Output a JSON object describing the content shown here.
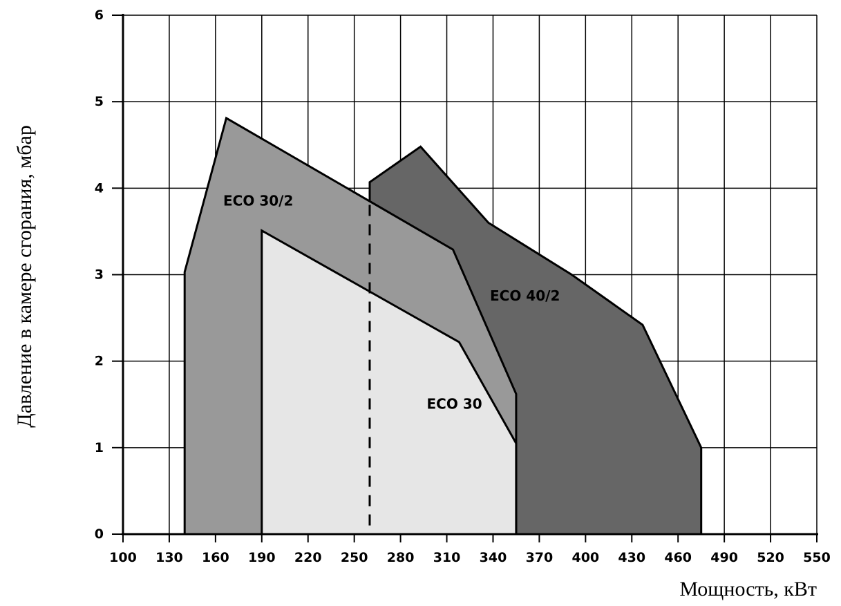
{
  "chart_data": {
    "type": "area",
    "xlabel": "Мощность, кВт",
    "ylabel": "Давление в камере сгорания, мбар",
    "xlim": [
      100,
      550
    ],
    "ylim": [
      0,
      6
    ],
    "x_ticks": [
      100,
      130,
      160,
      190,
      220,
      250,
      280,
      310,
      340,
      370,
      400,
      430,
      460,
      490,
      520,
      550
    ],
    "y_ticks": [
      0,
      1,
      2,
      3,
      4,
      5,
      6
    ],
    "grid": true,
    "series": [
      {
        "name": "ECO 40/2",
        "color": "#666666",
        "label_at": [
          338,
          2.7
        ],
        "points": [
          [
            260,
            0
          ],
          [
            260,
            4.07
          ],
          [
            293,
            4.48
          ],
          [
            337,
            3.6
          ],
          [
            391,
            3.0
          ],
          [
            437,
            2.42
          ],
          [
            475,
            1.0
          ],
          [
            475,
            0
          ]
        ]
      },
      {
        "name": "ECO 30/2",
        "color": "#999999",
        "label_at": [
          165,
          3.8
        ],
        "points": [
          [
            140,
            0
          ],
          [
            140,
            3.03
          ],
          [
            167,
            4.81
          ],
          [
            314,
            3.29
          ],
          [
            355,
            1.62
          ],
          [
            355,
            0
          ]
        ]
      },
      {
        "name": "ECO 30",
        "color": "#e6e6e6",
        "label_at": [
          297,
          1.45
        ],
        "points": [
          [
            190,
            0
          ],
          [
            190,
            3.51
          ],
          [
            318,
            2.22
          ],
          [
            355,
            1.05
          ],
          [
            355,
            0
          ]
        ]
      }
    ],
    "dashed_line": {
      "x": 260,
      "y_from": 0.1,
      "y_to": 3.97
    }
  }
}
